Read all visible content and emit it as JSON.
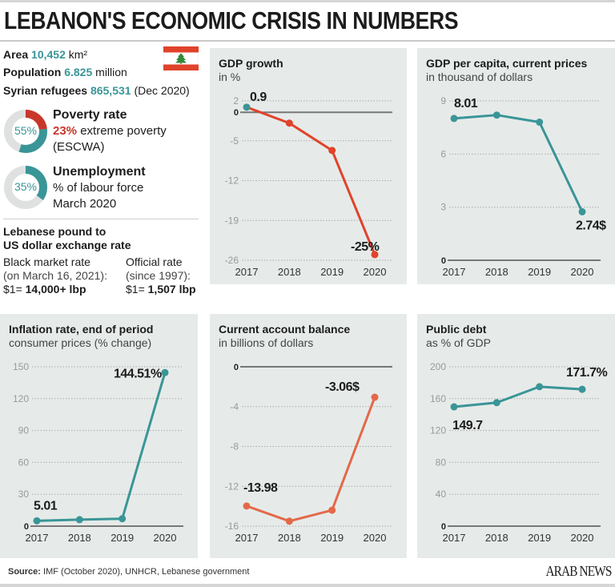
{
  "title": "LEBANON'S ECONOMIC CRISIS IN NUMBERS",
  "facts": {
    "area_label": "Area",
    "area_value": "10,452",
    "area_unit": "km²",
    "population_label": "Population",
    "population_value": "6.825",
    "population_unit": "million",
    "refugees_label": "Syrian refugees",
    "refugees_value": "865,531",
    "refugees_note": "(Dec 2020)"
  },
  "poverty": {
    "percent_label": "55%",
    "percent": 55,
    "extreme_percent": 23,
    "title": "Poverty rate",
    "extreme_value": "23%",
    "extreme_text": "extreme poverty",
    "source": "(ESCWA)"
  },
  "unemployment": {
    "percent_label": "35%",
    "percent": 35,
    "title": "Unemployment",
    "line1": "% of labour force",
    "line2": "March 2020"
  },
  "exchange": {
    "title1": "Lebanese pound to",
    "title2": "US dollar exchange rate",
    "black_title": "Black market rate",
    "black_note": "(on March 16, 2021):",
    "black_prefix": "$1=",
    "black_value": "14,000+ lbp",
    "official_title": "Official rate",
    "official_note": "(since 1997):",
    "official_prefix": "$1=",
    "official_value": "1,507 lbp"
  },
  "colors": {
    "teal": "#3a9597",
    "red": "#e0432b",
    "orange": "#e3694a",
    "panel": "#e6ebe9",
    "gray": "#dfe1e0",
    "flag_red": "#e0432b",
    "cedar": "#2f8a3a"
  },
  "chart_data": [
    {
      "type": "line",
      "title": "GDP growth",
      "subtitle": "in %",
      "categories": [
        "2017",
        "2018",
        "2019",
        "2020"
      ],
      "values": [
        0.9,
        -1.9,
        -6.7,
        -25
      ],
      "yticks": [
        "2",
        "0",
        "-5",
        "-12",
        "-19",
        "-26"
      ],
      "ylim": [
        -26,
        2
      ],
      "color": "#e0432b",
      "labels": [
        "0.9",
        "",
        "",
        "-25%"
      ]
    },
    {
      "type": "line",
      "title": "GDP per capita, current prices",
      "subtitle": "in thousand of dollars",
      "categories": [
        "2017",
        "2018",
        "2019",
        "2020"
      ],
      "values": [
        8.01,
        8.2,
        7.8,
        2.74
      ],
      "yticks": [
        "9",
        "6",
        "3",
        "0"
      ],
      "ylim": [
        0,
        9
      ],
      "color": "#3a9597",
      "labels": [
        "8.01",
        "",
        "",
        "2.74$"
      ]
    },
    {
      "type": "line",
      "title": "Inflation rate, end of period",
      "subtitle": "consumer prices (% change)",
      "categories": [
        "2017",
        "2018",
        "2019",
        "2020"
      ],
      "values": [
        5.01,
        6.1,
        7.0,
        144.51
      ],
      "yticks": [
        "150",
        "120",
        "90",
        "60",
        "30",
        "0"
      ],
      "ylim": [
        0,
        150
      ],
      "color": "#3a9597",
      "labels": [
        "5.01",
        "",
        "",
        "144.51%"
      ]
    },
    {
      "type": "line",
      "title": "Current account balance",
      "subtitle": "in billions of dollars",
      "categories": [
        "2017",
        "2018",
        "2019",
        "2020"
      ],
      "values": [
        -13.98,
        -15.5,
        -14.4,
        -3.06
      ],
      "yticks": [
        "0",
        "-4",
        "-8",
        "-12",
        "-16"
      ],
      "ylim": [
        -16,
        0
      ],
      "color": "#e3694a",
      "labels": [
        "-13.98",
        "",
        "",
        "-3.06$"
      ]
    },
    {
      "type": "line",
      "title": "Public debt",
      "subtitle": "as % of GDP",
      "categories": [
        "2017",
        "2018",
        "2019",
        "2020"
      ],
      "values": [
        149.7,
        155,
        175,
        171.7
      ],
      "yticks": [
        "200",
        "160",
        "120",
        "80",
        "40",
        "0"
      ],
      "ylim": [
        0,
        200
      ],
      "color": "#3a9597",
      "labels": [
        "149.7",
        "",
        "",
        "171.7%"
      ]
    }
  ],
  "footer": {
    "source_label": "Source:",
    "source_text": "IMF (October 2020), UNHCR, Lebanese government",
    "logo": "ARAB NEWS"
  }
}
